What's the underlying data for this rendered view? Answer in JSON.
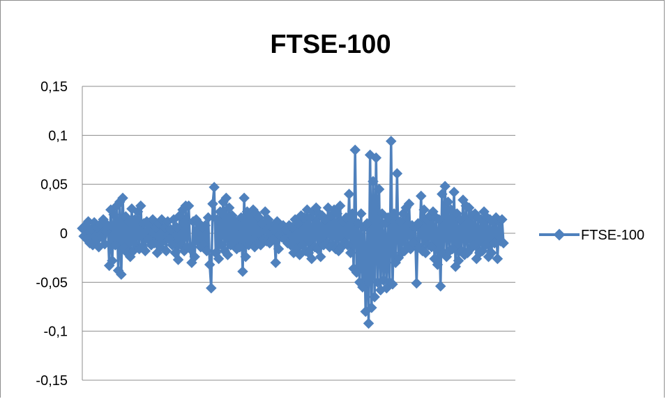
{
  "chart_data": {
    "type": "line",
    "title": "FTSE-100",
    "xlabel": "",
    "ylabel": "",
    "ylim": [
      -0.15,
      0.15
    ],
    "y_ticks": [
      "0,15",
      "0,1",
      "0,05",
      "0",
      "-0,05",
      "-0,1",
      "-0,15"
    ],
    "y_tick_values": [
      0.15,
      0.1,
      0.05,
      0,
      -0.05,
      -0.1,
      -0.15
    ],
    "grid": true,
    "legend_position": "right",
    "series_color": "#4f81bd",
    "series": [
      {
        "name": "FTSE-100",
        "values": [
          0.005,
          -0.003,
          0.008,
          -0.006,
          0.012,
          -0.01,
          0.004,
          -0.012,
          0.011,
          -0.008,
          0.006,
          -0.014,
          0.009,
          -0.004,
          0.014,
          -0.011,
          0.002,
          0.008,
          -0.033,
          0.024,
          -0.028,
          0.019,
          -0.012,
          0.028,
          -0.038,
          0.032,
          -0.042,
          0.036,
          -0.015,
          0.017,
          -0.02,
          0.012,
          -0.024,
          0.025,
          -0.018,
          0.014,
          -0.012,
          0.022,
          -0.016,
          0.028,
          -0.014,
          0.01,
          -0.018,
          0.012,
          -0.006,
          0.008,
          -0.012,
          0.014,
          -0.01,
          0.006,
          -0.02,
          0.01,
          -0.014,
          0.014,
          -0.008,
          0.006,
          -0.018,
          0.012,
          -0.006,
          0.004,
          -0.012,
          0.014,
          -0.02,
          0.006,
          -0.027,
          0.018,
          -0.012,
          0.024,
          -0.018,
          0.028,
          -0.014,
          0.028,
          -0.016,
          -0.03,
          0.012,
          -0.024,
          0.014,
          -0.008,
          0.01,
          -0.014,
          0.006,
          -0.012,
          0.008,
          -0.018,
          0.016,
          -0.032,
          -0.056,
          0.03,
          0.047,
          -0.02,
          0.014,
          -0.026,
          0.022,
          -0.012,
          0.032,
          -0.018,
          0.036,
          -0.022,
          0.026,
          -0.012,
          0.018,
          -0.008,
          0.012,
          -0.016,
          0.008,
          -0.014,
          0.016,
          -0.039,
          0.036,
          -0.024,
          0.022,
          -0.012,
          0.018,
          -0.008,
          0.024,
          -0.014,
          0.02,
          -0.01,
          0.016,
          -0.012,
          0.01,
          -0.006,
          0.022,
          -0.008,
          0.014,
          -0.01,
          0.008,
          -0.006,
          0.004,
          -0.03,
          0.012,
          -0.016,
          0.006,
          -0.004,
          0.008,
          -0.006,
          0.004,
          -0.01,
          0.008,
          -0.012,
          0.006,
          -0.02,
          0.014,
          -0.016,
          0.01,
          -0.022,
          0.018,
          -0.012,
          0.016,
          -0.018,
          0.024,
          -0.02,
          0.016,
          -0.026,
          0.022,
          -0.014,
          0.026,
          -0.016,
          0.02,
          -0.024,
          0.018,
          -0.012,
          0.014,
          -0.01,
          0.026,
          -0.014,
          0.018,
          -0.012,
          0.024,
          -0.016,
          0.02,
          -0.018,
          0.028,
          -0.014,
          0.012,
          -0.01,
          0.016,
          -0.012,
          0.04,
          -0.02,
          0.02,
          -0.036,
          0.085,
          -0.04,
          0.01,
          -0.05,
          0.02,
          -0.055,
          0.006,
          -0.08,
          0.01,
          -0.092,
          0.08,
          -0.076,
          0.053,
          -0.065,
          0.077,
          -0.05,
          0.045,
          -0.058,
          0.02,
          -0.048,
          0.01,
          -0.056,
          0.016,
          -0.05,
          0.094,
          -0.052,
          0.02,
          -0.03,
          0.061,
          -0.025,
          0.012,
          -0.02,
          0.02,
          -0.018,
          0.026,
          -0.012,
          0.03,
          -0.016,
          0.008,
          -0.01,
          0.006,
          -0.051,
          0.01,
          -0.014,
          0.038,
          -0.018,
          0.024,
          -0.02,
          0.014,
          -0.012,
          0.018,
          -0.014,
          0.022,
          -0.026,
          0.016,
          -0.032,
          0.014,
          -0.054,
          0.04,
          -0.02,
          0.048,
          -0.024,
          0.032,
          -0.018,
          0.024,
          -0.016,
          0.042,
          -0.034,
          0.02,
          -0.028,
          0.014,
          -0.018,
          0.034,
          -0.022,
          0.028,
          -0.02,
          0.026,
          -0.016,
          0.018,
          -0.012,
          0.02,
          -0.026,
          0.016,
          -0.02,
          0.014,
          -0.018,
          0.022,
          -0.012,
          0.016,
          -0.024,
          0.014,
          -0.02,
          0.012,
          -0.01,
          0.016,
          -0.026,
          0.012,
          -0.008,
          0.014,
          -0.01
        ]
      }
    ]
  }
}
